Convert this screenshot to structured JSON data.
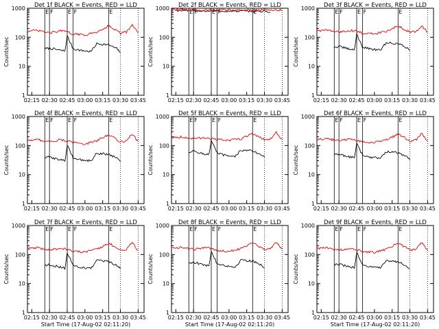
{
  "chart_data": {
    "type": "line",
    "ylabel": "Counts/sec",
    "xlabel": "Start Time (17-Aug-02 02:11:20)",
    "yscale": "log",
    "ylim": [
      1,
      1000
    ],
    "yticks": [
      "1",
      "10",
      "100",
      "1000"
    ],
    "xticks": [
      "02:15",
      "02:30",
      "02:45",
      "03:00",
      "03:15",
      "03:30",
      "03:45"
    ],
    "colors": {
      "events": "#000000",
      "lld": "#e00000"
    },
    "markers": [
      "E",
      "F",
      "E",
      "F",
      "E"
    ],
    "panels": [
      {
        "title": "Det 1f BLACK = Events, RED = LLD",
        "show_xlabel": false,
        "series": [
          {
            "name": "Events",
            "x": [
              "02:26",
              "02:30",
              "02:40",
              "02:43",
              "02:45",
              "02:50",
              "02:57",
              "03:05",
              "03:10",
              "03:20",
              "03:27",
              "03:30"
            ],
            "y": [
              40,
              42,
              35,
              34,
              110,
              40,
              35,
              32,
              60,
              55,
              40,
              30
            ]
          },
          {
            "name": "LLD",
            "x": [
              "02:11",
              "02:20",
              "02:30",
              "02:40",
              "02:50",
              "03:00",
              "03:10",
              "03:20",
              "03:30",
              "03:35",
              "03:40",
              "03:45"
            ],
            "y": [
              160,
              170,
              140,
              170,
              130,
              120,
              150,
              250,
              140,
              150,
              260,
              140
            ]
          }
        ]
      },
      {
        "title": "Det 2f BLACK = Events, RED = LLD",
        "show_xlabel": false,
        "series": [
          {
            "name": "Events",
            "x": [
              "02:15",
              "02:30",
              "02:45",
              "03:00",
              "03:15",
              "03:30",
              "03:35"
            ],
            "y": [
              850,
              820,
              800,
              790,
              800,
              780,
              700
            ]
          },
          {
            "name": "LLD",
            "x": [
              "02:11",
              "02:30",
              "02:45",
              "03:00",
              "03:15",
              "03:30",
              "03:45"
            ],
            "y": [
              900,
              880,
              870,
              860,
              880,
              870,
              860
            ]
          }
        ]
      },
      {
        "title": "Det 3f BLACK = Events, RED = LLD",
        "show_xlabel": false,
        "series": [
          {
            "name": "Events",
            "x": [
              "02:26",
              "02:30",
              "02:40",
              "02:43",
              "02:45",
              "02:50",
              "02:57",
              "03:05",
              "03:10",
              "03:20",
              "03:27",
              "03:30"
            ],
            "y": [
              45,
              48,
              38,
              36,
              130,
              45,
              40,
              35,
              65,
              60,
              45,
              35
            ]
          },
          {
            "name": "LLD",
            "x": [
              "02:11",
              "02:20",
              "02:30",
              "02:40",
              "02:50",
              "03:00",
              "03:10",
              "03:20",
              "03:30",
              "03:35",
              "03:40",
              "03:45"
            ],
            "y": [
              170,
              175,
              150,
              175,
              140,
              130,
              160,
              250,
              150,
              160,
              250,
              150
            ]
          }
        ]
      },
      {
        "title": "Det 4f BLACK = Events, RED = LLD",
        "show_xlabel": false,
        "series": [
          {
            "name": "Events",
            "x": [
              "02:26",
              "02:30",
              "02:40",
              "02:43",
              "02:45",
              "02:50",
              "02:57",
              "03:05",
              "03:10",
              "03:20",
              "03:27",
              "03:30"
            ],
            "y": [
              38,
              40,
              32,
              30,
              100,
              38,
              32,
              30,
              55,
              50,
              38,
              28
            ]
          },
          {
            "name": "LLD",
            "x": [
              "02:11",
              "02:20",
              "02:30",
              "02:40",
              "02:50",
              "03:00",
              "03:10",
              "03:20",
              "03:30",
              "03:35",
              "03:40",
              "03:45"
            ],
            "y": [
              150,
              160,
              135,
              160,
              125,
              115,
              145,
              240,
              135,
              145,
              250,
              135
            ]
          }
        ]
      },
      {
        "title": "Det 5f BLACK = Events, RED = LLD",
        "show_xlabel": false,
        "series": [
          {
            "name": "Events",
            "x": [
              "02:26",
              "02:30",
              "02:40",
              "02:43",
              "02:45",
              "02:50",
              "02:57",
              "03:05",
              "03:10",
              "03:20",
              "03:27",
              "03:30"
            ],
            "y": [
              60,
              65,
              50,
              48,
              150,
              55,
              45,
              40,
              70,
              65,
              50,
              40
            ]
          },
          {
            "name": "LLD",
            "x": [
              "02:11",
              "02:20",
              "02:30",
              "02:40",
              "02:50",
              "03:00",
              "03:10",
              "03:20",
              "03:30",
              "03:35",
              "03:40",
              "03:45"
            ],
            "y": [
              190,
              200,
              170,
              190,
              160,
              150,
              170,
              260,
              160,
              170,
              280,
              160
            ]
          }
        ]
      },
      {
        "title": "Det 6f BLACK = Events, RED = LLD",
        "show_xlabel": false,
        "series": [
          {
            "name": "Events",
            "x": [
              "02:26",
              "02:30",
              "02:40",
              "02:43",
              "02:45",
              "02:50",
              "02:57",
              "03:05",
              "03:10",
              "03:20",
              "03:27",
              "03:30"
            ],
            "y": [
              48,
              50,
              40,
              38,
              120,
              45,
              40,
              36,
              62,
              56,
              42,
              32
            ]
          },
          {
            "name": "LLD",
            "x": [
              "02:11",
              "02:20",
              "02:30",
              "02:40",
              "02:50",
              "03:00",
              "03:10",
              "03:20",
              "03:30",
              "03:35",
              "03:40",
              "03:45"
            ],
            "y": [
              165,
              170,
              145,
              170,
              135,
              125,
              155,
              245,
              145,
              155,
              255,
              145
            ]
          }
        ]
      },
      {
        "title": "Det 7f BLACK = Events, RED = LLD",
        "show_xlabel": true,
        "series": [
          {
            "name": "Events",
            "x": [
              "02:26",
              "02:30",
              "02:40",
              "02:43",
              "02:45",
              "02:50",
              "02:57",
              "03:05",
              "03:10",
              "03:20",
              "03:27",
              "03:30"
            ],
            "y": [
              42,
              45,
              36,
              34,
              115,
              42,
              36,
              33,
              62,
              56,
              42,
              32
            ]
          },
          {
            "name": "LLD",
            "x": [
              "02:11",
              "02:20",
              "02:30",
              "02:40",
              "02:50",
              "03:00",
              "03:10",
              "03:20",
              "03:30",
              "03:35",
              "03:40",
              "03:45"
            ],
            "y": [
              160,
              170,
              140,
              170,
              130,
              120,
              150,
              250,
              140,
              150,
              260,
              140
            ]
          }
        ]
      },
      {
        "title": "Det 8f BLACK = Events, RED = LLD",
        "show_xlabel": true,
        "series": [
          {
            "name": "Events",
            "x": [
              "02:26",
              "02:30",
              "02:40",
              "02:43",
              "02:45",
              "02:50",
              "02:57",
              "03:05",
              "03:10",
              "03:20",
              "03:27",
              "03:30"
            ],
            "y": [
              50,
              55,
              42,
              40,
              130,
              48,
              42,
              36,
              65,
              60,
              45,
              35
            ]
          },
          {
            "name": "LLD",
            "x": [
              "02:11",
              "02:20",
              "02:30",
              "02:40",
              "02:50",
              "03:00",
              "03:10",
              "03:20",
              "03:30",
              "03:35",
              "03:40",
              "03:45"
            ],
            "y": [
              170,
              175,
              150,
              175,
              140,
              130,
              160,
              260,
              150,
              160,
              270,
              150
            ]
          }
        ]
      },
      {
        "title": "Det 9f BLACK = Events, RED = LLD",
        "show_xlabel": true,
        "series": [
          {
            "name": "Events",
            "x": [
              "02:26",
              "02:30",
              "02:40",
              "02:43",
              "02:45",
              "02:50",
              "02:57",
              "03:05",
              "03:10",
              "03:20",
              "03:27",
              "03:30"
            ],
            "y": [
              44,
              46,
              37,
              35,
              120,
              44,
              38,
              34,
              62,
              56,
              42,
              32
            ]
          },
          {
            "name": "LLD",
            "x": [
              "02:11",
              "02:20",
              "02:30",
              "02:40",
              "02:50",
              "03:00",
              "03:10",
              "03:20",
              "03:30",
              "03:35",
              "03:40",
              "03:45"
            ],
            "y": [
              160,
              170,
              140,
              170,
              130,
              120,
              150,
              250,
              140,
              150,
              260,
              140
            ]
          }
        ]
      }
    ]
  }
}
